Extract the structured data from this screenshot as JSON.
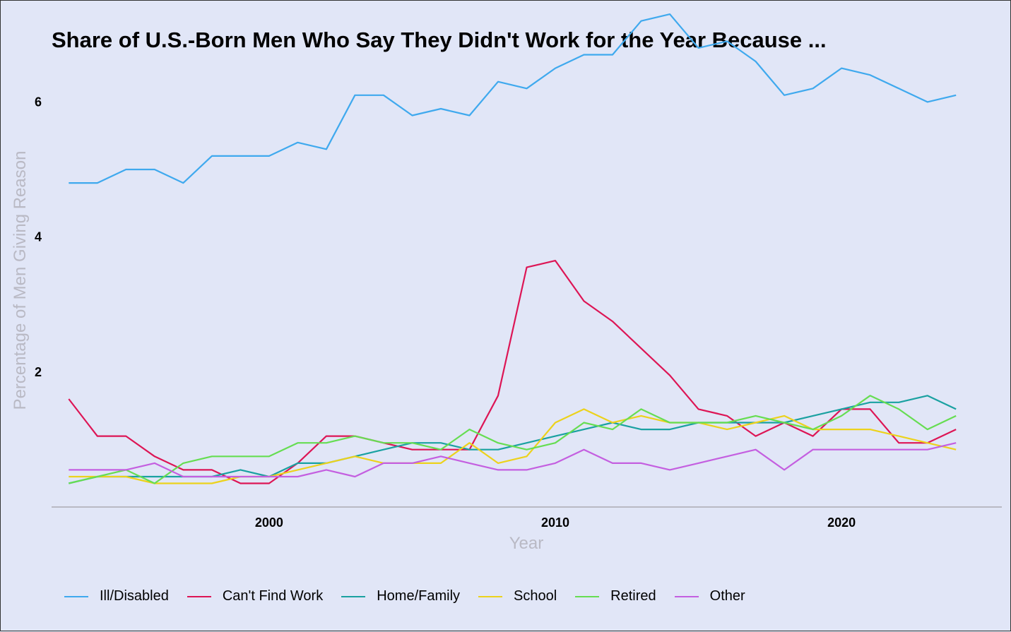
{
  "chart_data": {
    "type": "line",
    "title": "Share of U.S.-Born Men Who Say They Didn't Work for the Year Because ...",
    "xlabel": "Year",
    "ylabel": "Percentage of Men Giving Reason",
    "xlim": [
      1992.4,
      2025.6
    ],
    "ylim": [
      0,
      7.5
    ],
    "x_ticks": [
      2000,
      2010,
      2020
    ],
    "y_ticks": [
      2,
      4,
      6
    ],
    "x_tick_labels": [
      "2000",
      "2010",
      "2020"
    ],
    "y_tick_labels": [
      "2",
      "4",
      "6"
    ],
    "grid": false,
    "legend_position": "bottom",
    "x": [
      1993,
      1994,
      1995,
      1996,
      1997,
      1998,
      1999,
      2000,
      2001,
      2002,
      2003,
      2004,
      2005,
      2006,
      2007,
      2008,
      2009,
      2010,
      2011,
      2012,
      2013,
      2014,
      2015,
      2016,
      2017,
      2018,
      2019,
      2020,
      2021,
      2022,
      2023,
      2024
    ],
    "series": [
      {
        "name": "Ill/Disabled",
        "color": "#3fa9ee",
        "values": [
          4.8,
          4.8,
          5.0,
          5.0,
          4.8,
          5.2,
          5.2,
          5.2,
          5.4,
          5.3,
          6.1,
          6.1,
          5.8,
          5.9,
          5.8,
          6.3,
          6.2,
          6.5,
          6.7,
          6.7,
          7.2,
          7.3,
          6.8,
          6.9,
          6.6,
          6.1,
          6.2,
          6.5,
          6.4,
          6.2,
          6.0,
          6.1
        ]
      },
      {
        "name": "Can't Find Work",
        "color": "#dd1555",
        "values": [
          1.6,
          1.05,
          1.05,
          0.75,
          0.55,
          0.55,
          0.35,
          0.35,
          0.65,
          1.05,
          1.05,
          0.95,
          0.85,
          0.85,
          0.85,
          1.65,
          3.55,
          3.65,
          3.05,
          2.75,
          2.35,
          1.95,
          1.45,
          1.35,
          1.05,
          1.25,
          1.05,
          1.45,
          1.45,
          0.95,
          0.95,
          1.15
        ]
      },
      {
        "name": "Home/Family",
        "color": "#1aa1a1",
        "values": [
          0.35,
          0.45,
          0.45,
          0.45,
          0.45,
          0.45,
          0.55,
          0.45,
          0.65,
          0.65,
          0.75,
          0.85,
          0.95,
          0.95,
          0.85,
          0.85,
          0.95,
          1.05,
          1.15,
          1.25,
          1.15,
          1.15,
          1.25,
          1.25,
          1.25,
          1.25,
          1.35,
          1.45,
          1.55,
          1.55,
          1.65,
          1.45
        ]
      },
      {
        "name": "School",
        "color": "#ecd21c",
        "values": [
          0.45,
          0.45,
          0.45,
          0.35,
          0.35,
          0.35,
          0.45,
          0.45,
          0.55,
          0.65,
          0.75,
          0.65,
          0.65,
          0.65,
          0.95,
          0.65,
          0.75,
          1.25,
          1.45,
          1.25,
          1.35,
          1.25,
          1.25,
          1.15,
          1.25,
          1.35,
          1.15,
          1.15,
          1.15,
          1.05,
          0.95,
          0.85
        ]
      },
      {
        "name": "Retired",
        "color": "#66dd52",
        "values": [
          0.35,
          0.45,
          0.55,
          0.35,
          0.65,
          0.75,
          0.75,
          0.75,
          0.95,
          0.95,
          1.05,
          0.95,
          0.95,
          0.85,
          1.15,
          0.95,
          0.85,
          0.95,
          1.25,
          1.15,
          1.45,
          1.25,
          1.25,
          1.25,
          1.35,
          1.25,
          1.15,
          1.35,
          1.65,
          1.45,
          1.15,
          1.35
        ]
      },
      {
        "name": "Other",
        "color": "#c45fe0",
        "values": [
          0.55,
          0.55,
          0.55,
          0.65,
          0.45,
          0.45,
          0.45,
          0.45,
          0.45,
          0.55,
          0.45,
          0.65,
          0.65,
          0.75,
          0.65,
          0.55,
          0.55,
          0.65,
          0.85,
          0.65,
          0.65,
          0.55,
          0.65,
          0.75,
          0.85,
          0.55,
          0.85,
          0.85,
          0.85,
          0.85,
          0.85,
          0.95
        ]
      }
    ]
  },
  "colors": {
    "background": "#e1e6f7",
    "axis_line": "#b9b9c4",
    "axis_label": "#b9b9c4"
  }
}
